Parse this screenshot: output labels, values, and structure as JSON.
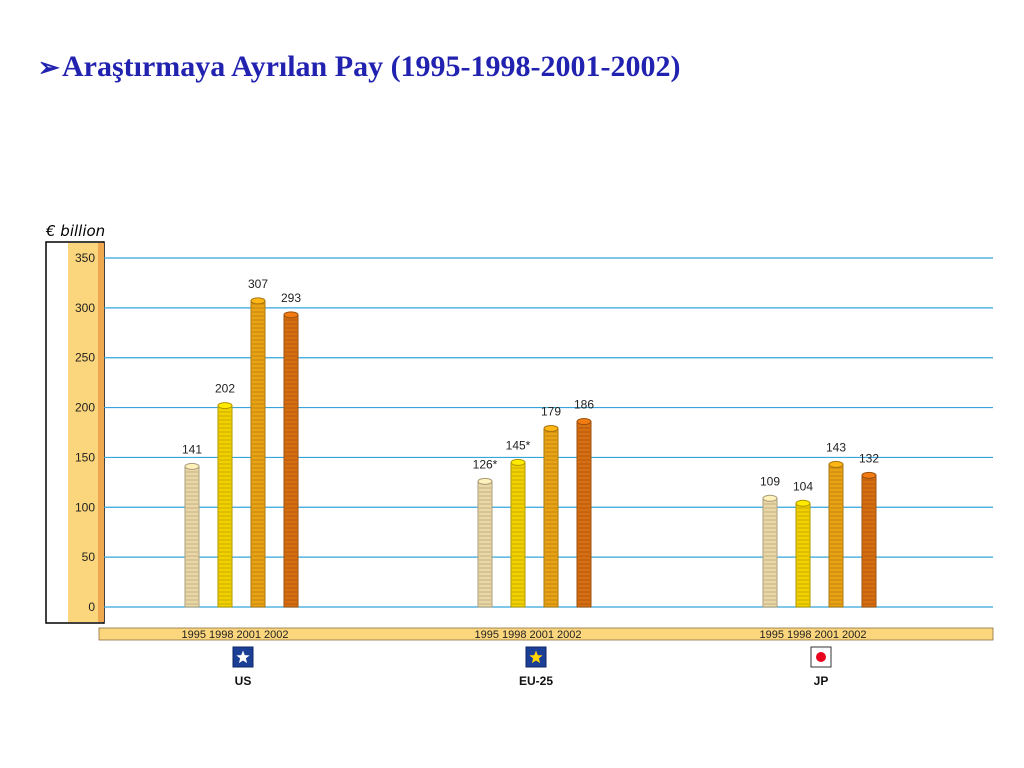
{
  "slide": {
    "title": "Araştırmaya Ayrılan Pay (1995-1998-2001-2002)",
    "bullet": "➢"
  },
  "chart_data": {
    "type": "bar",
    "ylabel": "€ billion",
    "ylim": [
      0,
      350
    ],
    "yticks": [
      0,
      50,
      100,
      150,
      200,
      250,
      300,
      350
    ],
    "grid": true,
    "series_years": [
      "1995",
      "1998",
      "2001",
      "2002"
    ],
    "groups": [
      {
        "label": "US",
        "icon": "star-flag-icon",
        "values": [
          141,
          202,
          307,
          293
        ],
        "value_labels": [
          "141",
          "202",
          "307",
          "293"
        ]
      },
      {
        "label": "EU-25",
        "icon": "star-flag-icon",
        "values": [
          126,
          145,
          179,
          186
        ],
        "value_labels": [
          "126*",
          "145*",
          "179",
          "186"
        ]
      },
      {
        "label": "JP",
        "icon": "japan-flag-icon",
        "values": [
          109,
          104,
          143,
          132
        ],
        "value_labels": [
          "109",
          "104",
          "143",
          "132"
        ]
      }
    ],
    "colors": {
      "grid": "#35a5dc",
      "axis_band": "#fcd67c",
      "1995": "#ead7a6",
      "1998": "#f2d100",
      "2001": "#e9a314",
      "2002": "#d86e12",
      "flag_blue": "#1b3f94",
      "flag_star_us": "#ffffff",
      "flag_star_eu": "#ffd400",
      "flag_red": "#e8001c"
    }
  }
}
